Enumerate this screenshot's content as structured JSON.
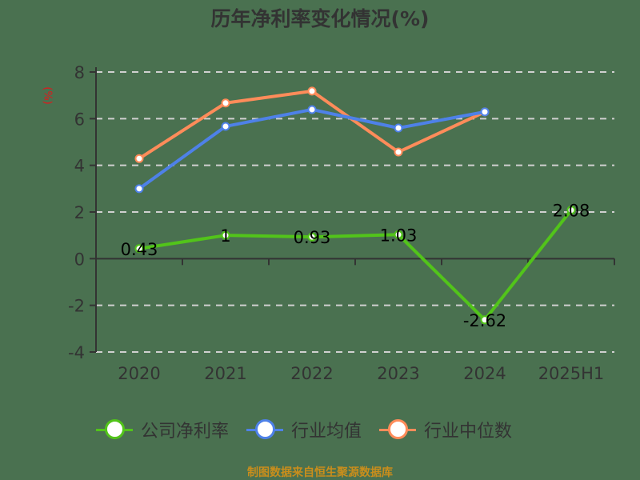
{
  "title": "历年净利率变化情况(%)",
  "unit_label": "(%)",
  "source": "制图数据来自恒生聚源数据库",
  "colors": {
    "company": "#52c41a",
    "industry_avg": "#4e81e8",
    "industry_median": "#ff8c5a",
    "axis": "#333333",
    "grid": "#d0d0d0",
    "unit": "#e8141a",
    "source": "#c98e1c",
    "background": "#4a7150"
  },
  "legend": [
    {
      "label": "公司净利率",
      "color": "#52c41a"
    },
    {
      "label": "行业均值",
      "color": "#4e81e8"
    },
    {
      "label": "行业中位数",
      "color": "#ff8c5a"
    }
  ],
  "chart_data": {
    "type": "line",
    "title": "历年净利率变化情况(%)",
    "xlabel": "",
    "ylabel": "(%)",
    "categories": [
      "2020",
      "2021",
      "2022",
      "2023",
      "2024",
      "2025H1"
    ],
    "ylim": [
      -4,
      8
    ],
    "yticks": [
      -4,
      -2,
      0,
      2,
      4,
      6,
      8
    ],
    "grid": true,
    "legend_position": "bottom",
    "series": [
      {
        "name": "公司净利率",
        "values": [
          0.43,
          1,
          0.93,
          1.03,
          -2.62,
          2.08
        ],
        "labels": [
          "0.43",
          "1",
          "0.93",
          "1.03",
          "-2.62",
          "2.08"
        ]
      },
      {
        "name": "行业均值",
        "values": [
          3.0,
          5.67,
          6.39,
          5.6,
          6.29,
          null
        ]
      },
      {
        "name": "行业中位数",
        "values": [
          4.29,
          6.67,
          7.18,
          4.57,
          6.29,
          null
        ]
      }
    ]
  }
}
